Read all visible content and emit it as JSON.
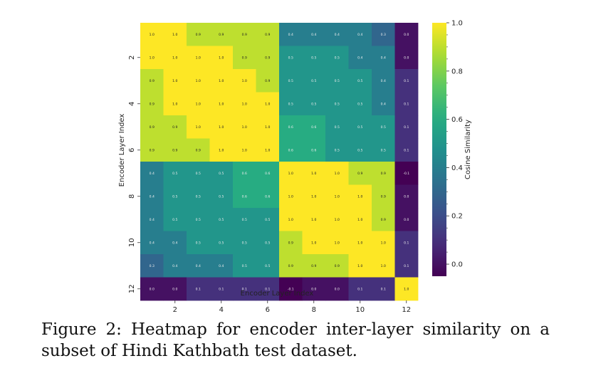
{
  "chart_data": {
    "type": "heatmap",
    "xlabel": "Encoder Layer Index",
    "ylabel": "Encoder Layer Index",
    "colorbar_label": "Cosine Similarity",
    "x_ticks": [
      "2",
      "4",
      "6",
      "8",
      "10",
      "12"
    ],
    "y_ticks": [
      "2",
      "4",
      "6",
      "8",
      "10",
      "12"
    ],
    "colorbar_ticks": [
      "0.0",
      "0.2",
      "0.4",
      "0.6",
      "0.8",
      "1.0"
    ],
    "colormap": "viridis",
    "vmin": -0.05,
    "vmax": 1.0,
    "values": [
      [
        1.0,
        1.0,
        0.9,
        0.9,
        0.9,
        0.9,
        0.4,
        0.4,
        0.4,
        0.4,
        0.3,
        0.0
      ],
      [
        1.0,
        1.0,
        1.0,
        1.0,
        0.9,
        0.9,
        0.5,
        0.5,
        0.5,
        0.4,
        0.4,
        0.0
      ],
      [
        0.9,
        1.0,
        1.0,
        1.0,
        1.0,
        0.9,
        0.5,
        0.5,
        0.5,
        0.5,
        0.4,
        0.1
      ],
      [
        0.9,
        1.0,
        1.0,
        1.0,
        1.0,
        1.0,
        0.5,
        0.5,
        0.5,
        0.5,
        0.4,
        0.1
      ],
      [
        0.9,
        0.9,
        1.0,
        1.0,
        1.0,
        1.0,
        0.6,
        0.6,
        0.5,
        0.5,
        0.5,
        0.1
      ],
      [
        0.9,
        0.9,
        0.9,
        1.0,
        1.0,
        1.0,
        0.6,
        0.6,
        0.5,
        0.5,
        0.5,
        0.1
      ],
      [
        0.4,
        0.5,
        0.5,
        0.5,
        0.6,
        0.6,
        1.0,
        1.0,
        1.0,
        0.9,
        0.9,
        -0.1
      ],
      [
        0.4,
        0.5,
        0.5,
        0.5,
        0.6,
        0.6,
        1.0,
        1.0,
        1.0,
        1.0,
        0.9,
        -0.0
      ],
      [
        0.4,
        0.5,
        0.5,
        0.5,
        0.5,
        0.5,
        1.0,
        1.0,
        1.0,
        1.0,
        0.9,
        0.0
      ],
      [
        0.4,
        0.4,
        0.5,
        0.5,
        0.5,
        0.5,
        0.9,
        1.0,
        1.0,
        1.0,
        1.0,
        0.1
      ],
      [
        0.3,
        0.4,
        0.4,
        0.4,
        0.5,
        0.5,
        0.9,
        0.9,
        0.9,
        1.0,
        1.0,
        0.1
      ],
      [
        0.0,
        0.0,
        0.1,
        0.1,
        0.1,
        0.1,
        -0.1,
        -0.0,
        0.0,
        0.1,
        0.1,
        1.0
      ]
    ]
  },
  "caption": "Figure 2: Heatmap for encoder inter-layer similarity on a subset of Hindi Kathbath test dataset."
}
